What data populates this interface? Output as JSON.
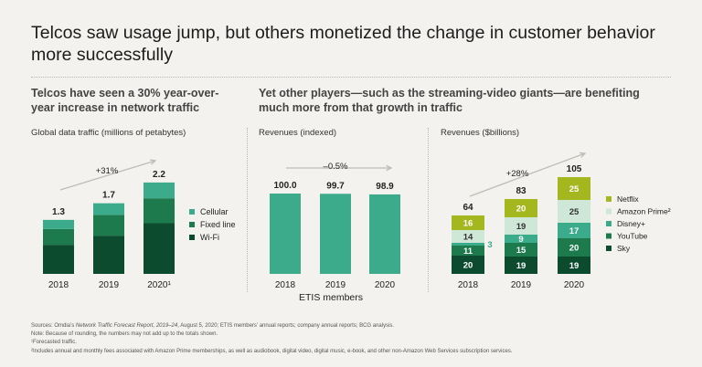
{
  "title": "Telcos saw usage jump, but others monetized the change in customer behavior more successfully",
  "subtitle_left": "Telcos have seen a 30% year-over-year increase in network traffic",
  "subtitle_right": "Yet other players—such as the streaming-video giants—are benefiting much more from that growth in traffic",
  "chart_data": [
    {
      "type": "bar",
      "title": "Global data traffic (millions of petabytes)",
      "categories": [
        "2018",
        "2019",
        "2020¹"
      ],
      "totals": [
        "1.3",
        "1.7",
        "2.2"
      ],
      "series": [
        {
          "name": "Wi-Fi",
          "color": "#0d4b2e",
          "values": [
            0.7,
            0.92,
            1.22
          ]
        },
        {
          "name": "Fixed line",
          "color": "#1d7a4d",
          "values": [
            0.38,
            0.5,
            0.6
          ]
        },
        {
          "name": "Cellular",
          "color": "#3cab8c",
          "values": [
            0.22,
            0.28,
            0.38
          ]
        }
      ],
      "annotation": "+31%",
      "ylim": [
        0,
        2.3
      ],
      "legend": "right"
    },
    {
      "type": "bar",
      "title": "Revenues (indexed)",
      "categories": [
        "2018",
        "2019",
        "2020"
      ],
      "values": [
        100.0,
        99.7,
        98.9
      ],
      "data_labels": [
        "100.0",
        "99.7",
        "98.9"
      ],
      "color": "#3cab8c",
      "annotation": "–0.5%",
      "xlabel": "ETIS members",
      "ylim": [
        0,
        100
      ]
    },
    {
      "type": "bar",
      "title": "Revenues ($billions)",
      "categories": [
        "2018",
        "2019",
        "2020"
      ],
      "totals": [
        "64",
        "83",
        "105"
      ],
      "series": [
        {
          "name": "Sky",
          "color": "#0d4b2e",
          "text_color": "#ffffff",
          "values": [
            20,
            19,
            19
          ],
          "labels": [
            "20",
            "19",
            "19"
          ]
        },
        {
          "name": "YouTube",
          "color": "#1d7a4d",
          "text_color": "#ffffff",
          "values": [
            11,
            15,
            20
          ],
          "labels": [
            "11",
            "15",
            "20"
          ]
        },
        {
          "name": "Disney+",
          "color": "#3cab8c",
          "text_color": "#ffffff",
          "values": [
            3,
            9,
            17
          ],
          "labels": [
            "3",
            "9",
            "17"
          ]
        },
        {
          "name": "Amazon Prime²",
          "color": "#cfe7d7",
          "text_color": "#333333",
          "values": [
            14,
            19,
            25
          ],
          "labels": [
            "14",
            "19",
            "25"
          ]
        },
        {
          "name": "Netflix",
          "color": "#a5b71e",
          "text_color": "#ffffff",
          "values": [
            16,
            20,
            25
          ],
          "labels": [
            "16",
            "20",
            "25"
          ]
        }
      ],
      "annotation": "+28%",
      "ylim": [
        0,
        105
      ],
      "legend": "right"
    }
  ],
  "notes": {
    "source_prefix": "Sources: Omdia’s ",
    "source_italic": "Network Traffic Forecast Report, 2019–24",
    "source_suffix": ", August 5, 2020; ETIS members’ annual reports; company annual reports; BCG analysis.",
    "note": "Note: Because of rounding, the numbers may not add up to the totals shown.",
    "fn1": "¹Forecasted traffic.",
    "fn2": "²Includes annual and monthly fees associated with Amazon Prime memberships, as well as audiobook, digital video, digital music, e-book, and other non-Amazon Web Services subscription services."
  }
}
